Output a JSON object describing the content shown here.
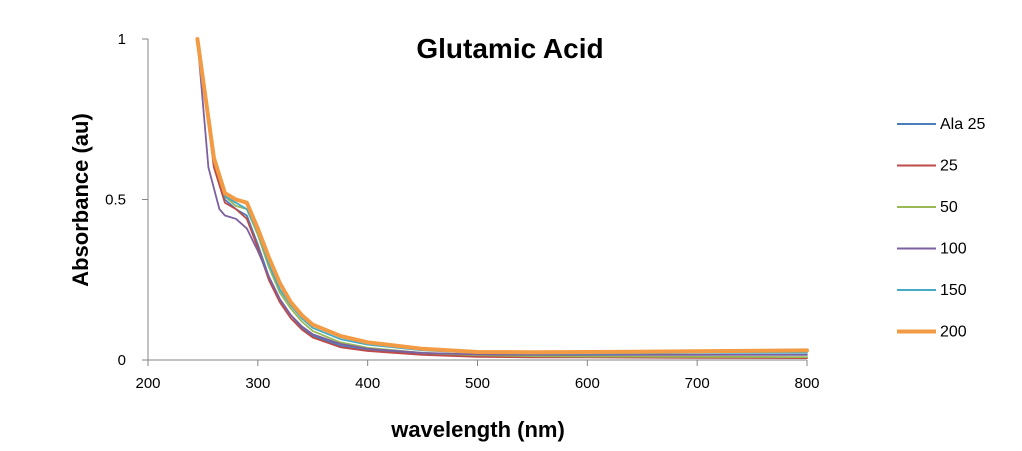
{
  "chart_data": {
    "type": "line",
    "title": "Glutamic Acid",
    "xlabel": "wavelength (nm)",
    "ylabel": "Absorbance (au)",
    "xlim": [
      200,
      800
    ],
    "ylim": [
      0,
      1
    ],
    "xticks": [
      "200",
      "300",
      "400",
      "500",
      "600",
      "700",
      "800"
    ],
    "yticks": [
      "0",
      "0.5",
      "1"
    ],
    "grid": false,
    "legend_position": "right",
    "series": [
      {
        "name": "Ala 25",
        "color": "#4a7ebb",
        "x": [
          245,
          260,
          270,
          280,
          290,
          300,
          310,
          320,
          330,
          340,
          350,
          375,
          400,
          450,
          500,
          550,
          600,
          700,
          800
        ],
        "y": [
          1.0,
          0.62,
          0.5,
          0.47,
          0.45,
          0.36,
          0.26,
          0.19,
          0.14,
          0.1,
          0.075,
          0.045,
          0.03,
          0.018,
          0.012,
          0.01,
          0.01,
          0.009,
          0.008
        ]
      },
      {
        "name": "25",
        "color": "#be4b48",
        "x": [
          245,
          260,
          270,
          280,
          290,
          300,
          310,
          320,
          330,
          340,
          350,
          375,
          400,
          450,
          500,
          550,
          600,
          700,
          800
        ],
        "y": [
          1.0,
          0.6,
          0.49,
          0.47,
          0.44,
          0.35,
          0.25,
          0.18,
          0.13,
          0.095,
          0.07,
          0.04,
          0.028,
          0.016,
          0.01,
          0.008,
          0.008,
          0.007,
          0.006
        ]
      },
      {
        "name": "50",
        "color": "#98b954",
        "x": [
          245,
          260,
          270,
          280,
          290,
          300,
          310,
          320,
          330,
          340,
          350,
          375,
          400,
          450,
          500,
          550,
          600,
          700,
          800
        ],
        "y": [
          1.0,
          0.62,
          0.51,
          0.48,
          0.47,
          0.39,
          0.29,
          0.21,
          0.16,
          0.12,
          0.09,
          0.055,
          0.038,
          0.022,
          0.015,
          0.012,
          0.011,
          0.01,
          0.009
        ]
      },
      {
        "name": "100",
        "color": "#7d60a0",
        "x": [
          245,
          255,
          265,
          270,
          280,
          290,
          300,
          310,
          320,
          330,
          340,
          350,
          375,
          400,
          450,
          500,
          550,
          600,
          700,
          800
        ],
        "y": [
          1.0,
          0.6,
          0.47,
          0.45,
          0.44,
          0.41,
          0.34,
          0.26,
          0.19,
          0.14,
          0.105,
          0.08,
          0.05,
          0.035,
          0.022,
          0.017,
          0.016,
          0.016,
          0.016,
          0.016
        ]
      },
      {
        "name": "150",
        "color": "#46aac5",
        "x": [
          245,
          260,
          270,
          280,
          290,
          300,
          310,
          320,
          330,
          340,
          350,
          375,
          400,
          450,
          500,
          550,
          600,
          700,
          800
        ],
        "y": [
          1.0,
          0.63,
          0.51,
          0.49,
          0.47,
          0.4,
          0.3,
          0.22,
          0.17,
          0.13,
          0.1,
          0.065,
          0.048,
          0.03,
          0.022,
          0.02,
          0.02,
          0.022,
          0.022
        ]
      },
      {
        "name": "200",
        "color": "#f29b44",
        "x": [
          245,
          260,
          270,
          280,
          290,
          300,
          310,
          320,
          330,
          340,
          350,
          375,
          400,
          450,
          500,
          550,
          600,
          700,
          800
        ],
        "y": [
          1.0,
          0.63,
          0.52,
          0.5,
          0.49,
          0.41,
          0.32,
          0.24,
          0.18,
          0.14,
          0.11,
          0.075,
          0.055,
          0.035,
          0.025,
          0.024,
          0.025,
          0.027,
          0.03
        ]
      }
    ]
  }
}
